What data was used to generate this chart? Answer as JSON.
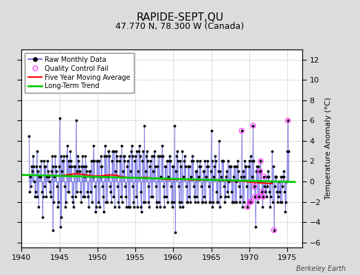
{
  "title": "RAPIDE-SEPT,QU",
  "subtitle": "47.770 N, 78.300 W (Canada)",
  "ylabel": "Temperature Anomaly (°C)",
  "watermark": "Berkeley Earth",
  "xlim": [
    1940,
    1977
  ],
  "ylim": [
    -6.5,
    13
  ],
  "yticks": [
    -6,
    -4,
    -2,
    0,
    2,
    4,
    6,
    8,
    10,
    12
  ],
  "xticks": [
    1940,
    1945,
    1950,
    1955,
    1960,
    1965,
    1970,
    1975
  ],
  "bg_color": "#dcdcdc",
  "plot_bg_color": "#ffffff",
  "raw_line_color": "#5555dd",
  "raw_dot_color": "#000000",
  "ma_color": "#ff0000",
  "trend_color": "#00cc00",
  "qc_color": "#ff44ff",
  "raw_data": [
    [
      1941.0,
      4.5
    ],
    [
      1941.083,
      -1.0
    ],
    [
      1941.167,
      0.5
    ],
    [
      1941.25,
      -0.5
    ],
    [
      1941.333,
      1.5
    ],
    [
      1941.417,
      1.0
    ],
    [
      1941.5,
      2.5
    ],
    [
      1941.583,
      1.5
    ],
    [
      1941.667,
      0.0
    ],
    [
      1941.75,
      -1.5
    ],
    [
      1941.833,
      -1.0
    ],
    [
      1941.917,
      1.5
    ],
    [
      1942.0,
      3.0
    ],
    [
      1942.083,
      -1.5
    ],
    [
      1942.167,
      1.0
    ],
    [
      1942.25,
      -2.5
    ],
    [
      1942.333,
      0.5
    ],
    [
      1942.417,
      1.5
    ],
    [
      1942.5,
      0.5
    ],
    [
      1942.583,
      2.0
    ],
    [
      1942.667,
      -1.0
    ],
    [
      1942.75,
      -3.5
    ],
    [
      1942.833,
      -1.5
    ],
    [
      1942.917,
      2.0
    ],
    [
      1943.0,
      1.5
    ],
    [
      1943.083,
      -0.5
    ],
    [
      1943.167,
      1.5
    ],
    [
      1943.25,
      -1.5
    ],
    [
      1943.333,
      0.5
    ],
    [
      1943.417,
      2.0
    ],
    [
      1943.5,
      1.0
    ],
    [
      1943.583,
      0.5
    ],
    [
      1943.667,
      0.0
    ],
    [
      1943.75,
      -1.0
    ],
    [
      1943.833,
      -1.5
    ],
    [
      1943.917,
      1.0
    ],
    [
      1944.0,
      2.5
    ],
    [
      1944.083,
      -4.8
    ],
    [
      1944.167,
      1.5
    ],
    [
      1944.25,
      -2.0
    ],
    [
      1944.333,
      0.5
    ],
    [
      1944.417,
      2.5
    ],
    [
      1944.5,
      1.5
    ],
    [
      1944.583,
      1.0
    ],
    [
      1944.667,
      -0.5
    ],
    [
      1944.75,
      -2.5
    ],
    [
      1944.833,
      -2.0
    ],
    [
      1944.917,
      1.5
    ],
    [
      1945.0,
      6.2
    ],
    [
      1945.083,
      -4.5
    ],
    [
      1945.167,
      2.5
    ],
    [
      1945.25,
      -3.5
    ],
    [
      1945.333,
      1.0
    ],
    [
      1945.417,
      2.0
    ],
    [
      1945.5,
      2.0
    ],
    [
      1945.583,
      2.5
    ],
    [
      1945.667,
      -0.5
    ],
    [
      1945.75,
      -2.5
    ],
    [
      1945.833,
      -2.0
    ],
    [
      1945.917,
      2.5
    ],
    [
      1946.0,
      3.5
    ],
    [
      1946.083,
      -1.0
    ],
    [
      1946.167,
      2.0
    ],
    [
      1946.25,
      -1.0
    ],
    [
      1946.333,
      1.5
    ],
    [
      1946.417,
      3.0
    ],
    [
      1946.5,
      2.0
    ],
    [
      1946.583,
      1.5
    ],
    [
      1946.667,
      -1.5
    ],
    [
      1946.75,
      -2.0
    ],
    [
      1946.833,
      -2.5
    ],
    [
      1946.917,
      1.5
    ],
    [
      1947.0,
      1.5
    ],
    [
      1947.083,
      -1.5
    ],
    [
      1947.167,
      6.0
    ],
    [
      1947.25,
      -1.0
    ],
    [
      1947.333,
      1.0
    ],
    [
      1947.417,
      2.5
    ],
    [
      1947.5,
      2.0
    ],
    [
      1947.583,
      1.5
    ],
    [
      1947.667,
      1.0
    ],
    [
      1947.75,
      -1.0
    ],
    [
      1947.833,
      -2.0
    ],
    [
      1947.917,
      1.5
    ],
    [
      1948.0,
      2.5
    ],
    [
      1948.083,
      -1.5
    ],
    [
      1948.167,
      1.5
    ],
    [
      1948.25,
      -1.5
    ],
    [
      1948.333,
      0.5
    ],
    [
      1948.417,
      2.5
    ],
    [
      1948.5,
      1.5
    ],
    [
      1948.583,
      1.0
    ],
    [
      1948.667,
      -1.0
    ],
    [
      1948.75,
      -1.5
    ],
    [
      1948.833,
      -2.5
    ],
    [
      1948.917,
      1.0
    ],
    [
      1949.0,
      1.0
    ],
    [
      1949.083,
      -1.0
    ],
    [
      1949.167,
      2.0
    ],
    [
      1949.25,
      -2.0
    ],
    [
      1949.333,
      0.5
    ],
    [
      1949.417,
      2.0
    ],
    [
      1949.5,
      3.5
    ],
    [
      1949.583,
      2.0
    ],
    [
      1949.667,
      -0.5
    ],
    [
      1949.75,
      -3.0
    ],
    [
      1949.833,
      -2.5
    ],
    [
      1949.917,
      2.0
    ],
    [
      1950.0,
      2.0
    ],
    [
      1950.083,
      -2.0
    ],
    [
      1950.167,
      2.0
    ],
    [
      1950.25,
      -2.5
    ],
    [
      1950.333,
      0.5
    ],
    [
      1950.417,
      2.5
    ],
    [
      1950.5,
      1.5
    ],
    [
      1950.583,
      1.5
    ],
    [
      1950.667,
      -0.5
    ],
    [
      1950.75,
      -1.5
    ],
    [
      1950.833,
      -3.0
    ],
    [
      1950.917,
      2.5
    ],
    [
      1951.0,
      3.5
    ],
    [
      1951.083,
      -2.0
    ],
    [
      1951.167,
      2.5
    ],
    [
      1951.25,
      -2.0
    ],
    [
      1951.333,
      0.5
    ],
    [
      1951.417,
      3.0
    ],
    [
      1951.5,
      3.0
    ],
    [
      1951.583,
      2.5
    ],
    [
      1951.667,
      -0.5
    ],
    [
      1951.75,
      -1.0
    ],
    [
      1951.833,
      -2.0
    ],
    [
      1951.917,
      2.0
    ],
    [
      1952.0,
      3.0
    ],
    [
      1952.083,
      -1.5
    ],
    [
      1952.167,
      3.0
    ],
    [
      1952.25,
      -2.5
    ],
    [
      1952.333,
      1.0
    ],
    [
      1952.417,
      3.0
    ],
    [
      1952.5,
      2.0
    ],
    [
      1952.583,
      2.5
    ],
    [
      1952.667,
      -0.5
    ],
    [
      1952.75,
      -2.0
    ],
    [
      1952.833,
      -2.5
    ],
    [
      1952.917,
      2.0
    ],
    [
      1953.0,
      2.5
    ],
    [
      1953.083,
      -1.5
    ],
    [
      1953.167,
      3.5
    ],
    [
      1953.25,
      -2.0
    ],
    [
      1953.333,
      1.0
    ],
    [
      1953.417,
      2.5
    ],
    [
      1953.5,
      2.5
    ],
    [
      1953.583,
      2.0
    ],
    [
      1953.667,
      -0.5
    ],
    [
      1953.75,
      -1.5
    ],
    [
      1953.833,
      -2.5
    ],
    [
      1953.917,
      1.5
    ],
    [
      1954.0,
      2.0
    ],
    [
      1954.083,
      -2.5
    ],
    [
      1954.167,
      2.5
    ],
    [
      1954.25,
      -2.5
    ],
    [
      1954.333,
      1.0
    ],
    [
      1954.417,
      3.0
    ],
    [
      1954.5,
      3.5
    ],
    [
      1954.583,
      2.5
    ],
    [
      1954.667,
      -0.5
    ],
    [
      1954.75,
      -2.0
    ],
    [
      1954.833,
      -2.5
    ],
    [
      1954.917,
      2.0
    ],
    [
      1955.0,
      2.5
    ],
    [
      1955.083,
      -1.5
    ],
    [
      1955.167,
      3.0
    ],
    [
      1955.25,
      -2.5
    ],
    [
      1955.333,
      1.0
    ],
    [
      1955.417,
      3.0
    ],
    [
      1955.5,
      3.5
    ],
    [
      1955.583,
      2.5
    ],
    [
      1955.667,
      -1.0
    ],
    [
      1955.75,
      -2.5
    ],
    [
      1955.833,
      -3.0
    ],
    [
      1955.917,
      2.0
    ],
    [
      1956.0,
      3.0
    ],
    [
      1956.083,
      -2.0
    ],
    [
      1956.167,
      5.5
    ],
    [
      1956.25,
      -2.0
    ],
    [
      1956.333,
      1.0
    ],
    [
      1956.417,
      2.5
    ],
    [
      1956.5,
      3.0
    ],
    [
      1956.583,
      2.0
    ],
    [
      1956.667,
      -0.5
    ],
    [
      1956.75,
      -2.0
    ],
    [
      1956.833,
      -2.5
    ],
    [
      1956.917,
      1.5
    ],
    [
      1957.0,
      2.0
    ],
    [
      1957.083,
      -1.5
    ],
    [
      1957.167,
      2.5
    ],
    [
      1957.25,
      -1.5
    ],
    [
      1957.333,
      1.0
    ],
    [
      1957.417,
      2.5
    ],
    [
      1957.5,
      3.0
    ],
    [
      1957.583,
      1.5
    ],
    [
      1957.667,
      -0.5
    ],
    [
      1957.75,
      -2.0
    ],
    [
      1957.833,
      -2.5
    ],
    [
      1957.917,
      1.5
    ],
    [
      1958.0,
      2.5
    ],
    [
      1958.083,
      -2.0
    ],
    [
      1958.167,
      2.5
    ],
    [
      1958.25,
      -2.5
    ],
    [
      1958.333,
      0.5
    ],
    [
      1958.417,
      2.5
    ],
    [
      1958.5,
      3.5
    ],
    [
      1958.583,
      2.5
    ],
    [
      1958.667,
      -0.5
    ],
    [
      1958.75,
      -1.5
    ],
    [
      1958.833,
      -2.5
    ],
    [
      1958.917,
      1.5
    ],
    [
      1959.0,
      1.5
    ],
    [
      1959.083,
      -1.5
    ],
    [
      1959.167,
      2.0
    ],
    [
      1959.25,
      -2.0
    ],
    [
      1959.333,
      0.5
    ],
    [
      1959.417,
      2.0
    ],
    [
      1959.5,
      2.5
    ],
    [
      1959.583,
      2.0
    ],
    [
      1959.667,
      -0.5
    ],
    [
      1959.75,
      -2.0
    ],
    [
      1959.833,
      -2.5
    ],
    [
      1959.917,
      1.5
    ],
    [
      1960.0,
      1.5
    ],
    [
      1960.083,
      -2.0
    ],
    [
      1960.167,
      5.5
    ],
    [
      1960.25,
      -5.0
    ],
    [
      1960.333,
      1.0
    ],
    [
      1960.417,
      2.5
    ],
    [
      1960.5,
      3.0
    ],
    [
      1960.583,
      2.0
    ],
    [
      1960.667,
      -0.5
    ],
    [
      1960.75,
      -2.0
    ],
    [
      1960.833,
      -2.5
    ],
    [
      1960.917,
      2.0
    ],
    [
      1961.0,
      1.5
    ],
    [
      1961.083,
      -2.0
    ],
    [
      1961.167,
      3.0
    ],
    [
      1961.25,
      -2.5
    ],
    [
      1961.333,
      0.5
    ],
    [
      1961.417,
      2.0
    ],
    [
      1961.5,
      2.5
    ],
    [
      1961.583,
      1.5
    ],
    [
      1961.667,
      -0.5
    ],
    [
      1961.75,
      -2.0
    ],
    [
      1961.833,
      -2.0
    ],
    [
      1961.917,
      1.5
    ],
    [
      1962.0,
      1.5
    ],
    [
      1962.083,
      -1.5
    ],
    [
      1962.167,
      1.5
    ],
    [
      1962.25,
      -2.0
    ],
    [
      1962.333,
      0.5
    ],
    [
      1962.417,
      2.0
    ],
    [
      1962.5,
      2.5
    ],
    [
      1962.583,
      2.0
    ],
    [
      1962.667,
      -0.5
    ],
    [
      1962.75,
      -1.5
    ],
    [
      1962.833,
      -2.0
    ],
    [
      1962.917,
      1.0
    ],
    [
      1963.0,
      1.0
    ],
    [
      1963.083,
      -1.5
    ],
    [
      1963.167,
      2.0
    ],
    [
      1963.25,
      -2.0
    ],
    [
      1963.333,
      0.5
    ],
    [
      1963.417,
      1.5
    ],
    [
      1963.5,
      2.0
    ],
    [
      1963.583,
      1.5
    ],
    [
      1963.667,
      -0.5
    ],
    [
      1963.75,
      -2.0
    ],
    [
      1963.833,
      -2.0
    ],
    [
      1963.917,
      1.0
    ],
    [
      1964.0,
      1.0
    ],
    [
      1964.083,
      -1.5
    ],
    [
      1964.167,
      2.0
    ],
    [
      1964.25,
      -2.0
    ],
    [
      1964.333,
      0.5
    ],
    [
      1964.417,
      1.5
    ],
    [
      1964.5,
      2.0
    ],
    [
      1964.583,
      1.5
    ],
    [
      1964.667,
      -0.5
    ],
    [
      1964.75,
      -2.0
    ],
    [
      1964.833,
      -2.0
    ],
    [
      1964.917,
      1.0
    ],
    [
      1965.0,
      5.0
    ],
    [
      1965.083,
      -2.5
    ],
    [
      1965.167,
      2.0
    ],
    [
      1965.25,
      -2.0
    ],
    [
      1965.333,
      0.5
    ],
    [
      1965.417,
      1.5
    ],
    [
      1965.5,
      2.5
    ],
    [
      1965.583,
      2.0
    ],
    [
      1965.667,
      -1.0
    ],
    [
      1965.75,
      -2.0
    ],
    [
      1965.833,
      -2.0
    ],
    [
      1965.917,
      1.0
    ],
    [
      1966.0,
      4.0
    ],
    [
      1966.083,
      -2.5
    ],
    [
      1966.167,
      1.0
    ],
    [
      1966.25,
      -1.5
    ],
    [
      1966.333,
      0.5
    ],
    [
      1966.417,
      2.0
    ],
    [
      1966.5,
      2.0
    ],
    [
      1966.583,
      2.0
    ],
    [
      1966.667,
      -0.5
    ],
    [
      1966.75,
      -2.0
    ],
    [
      1966.833,
      -1.5
    ],
    [
      1966.917,
      0.5
    ],
    [
      1967.0,
      1.0
    ],
    [
      1967.083,
      -1.0
    ],
    [
      1967.167,
      2.0
    ],
    [
      1967.25,
      -1.5
    ],
    [
      1967.333,
      0.0
    ],
    [
      1967.417,
      1.5
    ],
    [
      1967.5,
      1.5
    ],
    [
      1967.583,
      1.5
    ],
    [
      1967.667,
      -1.0
    ],
    [
      1967.75,
      -2.0
    ],
    [
      1967.833,
      -2.0
    ],
    [
      1967.917,
      0.5
    ],
    [
      1968.0,
      1.5
    ],
    [
      1968.083,
      -2.0
    ],
    [
      1968.167,
      1.5
    ],
    [
      1968.25,
      -2.0
    ],
    [
      1968.333,
      0.0
    ],
    [
      1968.417,
      1.5
    ],
    [
      1968.5,
      2.0
    ],
    [
      1968.583,
      1.0
    ],
    [
      1968.667,
      -0.5
    ],
    [
      1968.75,
      -2.0
    ],
    [
      1968.833,
      -1.5
    ],
    [
      1968.917,
      0.5
    ],
    [
      1969.0,
      5.0
    ],
    [
      1969.083,
      -2.5
    ],
    [
      1969.167,
      1.0
    ],
    [
      1969.25,
      -2.0
    ],
    [
      1969.333,
      0.5
    ],
    [
      1969.417,
      2.0
    ],
    [
      1969.5,
      1.5
    ],
    [
      1969.583,
      1.5
    ],
    [
      1969.667,
      -0.5
    ],
    [
      1969.75,
      -2.5
    ],
    [
      1969.833,
      -2.0
    ],
    [
      1969.917,
      1.5
    ],
    [
      1970.0,
      2.0
    ],
    [
      1970.083,
      -2.0
    ],
    [
      1970.167,
      2.5
    ],
    [
      1970.25,
      -2.0
    ],
    [
      1970.333,
      0.5
    ],
    [
      1970.417,
      2.0
    ],
    [
      1970.5,
      5.5
    ],
    [
      1970.583,
      2.0
    ],
    [
      1970.667,
      -0.5
    ],
    [
      1970.75,
      -1.5
    ],
    [
      1970.833,
      -4.5
    ],
    [
      1970.917,
      1.0
    ],
    [
      1971.0,
      1.5
    ],
    [
      1971.083,
      -2.0
    ],
    [
      1971.167,
      1.5
    ],
    [
      1971.25,
      -1.5
    ],
    [
      1971.333,
      0.0
    ],
    [
      1971.417,
      1.0
    ],
    [
      1971.5,
      2.0
    ],
    [
      1971.583,
      1.0
    ],
    [
      1971.667,
      -1.0
    ],
    [
      1971.75,
      -2.5
    ],
    [
      1971.833,
      -1.5
    ],
    [
      1971.917,
      0.5
    ],
    [
      1972.0,
      -0.5
    ],
    [
      1972.083,
      -1.0
    ],
    [
      1972.167,
      0.5
    ],
    [
      1972.25,
      -1.5
    ],
    [
      1972.333,
      -0.5
    ],
    [
      1972.417,
      0.5
    ],
    [
      1972.5,
      1.0
    ],
    [
      1972.583,
      0.5
    ],
    [
      1972.667,
      -1.0
    ],
    [
      1972.75,
      -2.5
    ],
    [
      1972.833,
      -1.5
    ],
    [
      1972.917,
      0.0
    ],
    [
      1973.0,
      3.0
    ],
    [
      1973.083,
      -2.0
    ],
    [
      1973.167,
      1.5
    ],
    [
      1973.25,
      -4.8
    ],
    [
      1973.333,
      -0.5
    ],
    [
      1973.417,
      0.5
    ],
    [
      1973.5,
      0.5
    ],
    [
      1973.583,
      0.5
    ],
    [
      1973.667,
      -1.0
    ],
    [
      1973.75,
      -2.0
    ],
    [
      1973.833,
      -1.5
    ],
    [
      1973.917,
      0.0
    ],
    [
      1974.0,
      -1.0
    ],
    [
      1974.083,
      -2.0
    ],
    [
      1974.167,
      0.5
    ],
    [
      1974.25,
      -2.0
    ],
    [
      1974.333,
      -0.5
    ],
    [
      1974.417,
      0.5
    ],
    [
      1974.5,
      1.0
    ],
    [
      1974.583,
      0.5
    ],
    [
      1974.667,
      -1.0
    ],
    [
      1974.75,
      -3.0
    ],
    [
      1974.833,
      -2.0
    ],
    [
      1974.917,
      0.0
    ],
    [
      1975.0,
      3.0
    ],
    [
      1975.083,
      6.0
    ],
    [
      1975.167,
      3.0
    ]
  ],
  "qc_fail_points": [
    [
      1973.25,
      -4.8
    ],
    [
      1970.5,
      5.5
    ],
    [
      1975.083,
      6.0
    ],
    [
      1969.75,
      -2.5
    ],
    [
      1970.083,
      -2.0
    ],
    [
      1970.25,
      -2.0
    ],
    [
      1970.667,
      -0.5
    ],
    [
      1970.75,
      -1.5
    ],
    [
      1971.25,
      -1.5
    ],
    [
      1971.417,
      1.0
    ],
    [
      1971.5,
      2.0
    ],
    [
      1971.667,
      -1.0
    ],
    [
      1971.833,
      -1.5
    ],
    [
      1971.917,
      0.5
    ],
    [
      1969.0,
      5.0
    ]
  ],
  "moving_avg": [
    [
      1943.5,
      0.65
    ],
    [
      1944.0,
      0.6
    ],
    [
      1944.5,
      0.55
    ],
    [
      1945.0,
      0.55
    ],
    [
      1945.5,
      0.6
    ],
    [
      1946.0,
      0.65
    ],
    [
      1946.5,
      0.7
    ],
    [
      1947.0,
      0.75
    ],
    [
      1947.5,
      0.75
    ],
    [
      1948.0,
      0.7
    ],
    [
      1948.5,
      0.65
    ],
    [
      1949.0,
      0.6
    ],
    [
      1949.5,
      0.55
    ],
    [
      1950.0,
      0.55
    ],
    [
      1950.5,
      0.55
    ],
    [
      1951.0,
      0.6
    ],
    [
      1951.5,
      0.65
    ],
    [
      1952.0,
      0.65
    ],
    [
      1952.5,
      0.6
    ],
    [
      1953.0,
      0.5
    ],
    [
      1953.5,
      0.45
    ],
    [
      1954.0,
      0.4
    ],
    [
      1954.5,
      0.4
    ],
    [
      1955.0,
      0.35
    ],
    [
      1955.5,
      0.35
    ],
    [
      1956.0,
      0.4
    ],
    [
      1956.5,
      0.4
    ],
    [
      1957.0,
      0.35
    ],
    [
      1957.5,
      0.3
    ],
    [
      1958.0,
      0.3
    ],
    [
      1958.5,
      0.25
    ],
    [
      1959.0,
      0.2
    ],
    [
      1959.5,
      0.2
    ],
    [
      1960.0,
      0.2
    ],
    [
      1960.5,
      0.2
    ],
    [
      1961.0,
      0.2
    ],
    [
      1961.5,
      0.2
    ],
    [
      1962.0,
      0.15
    ],
    [
      1962.5,
      0.15
    ],
    [
      1963.0,
      0.15
    ],
    [
      1963.5,
      0.15
    ],
    [
      1964.0,
      0.15
    ],
    [
      1964.5,
      0.15
    ],
    [
      1965.0,
      0.15
    ],
    [
      1965.5,
      0.15
    ],
    [
      1966.0,
      0.1
    ],
    [
      1966.5,
      0.1
    ],
    [
      1967.0,
      0.1
    ],
    [
      1967.5,
      0.05
    ],
    [
      1968.0,
      0.05
    ],
    [
      1968.5,
      0.05
    ],
    [
      1969.0,
      0.05
    ],
    [
      1969.5,
      0.0
    ],
    [
      1970.0,
      -0.05
    ],
    [
      1970.5,
      -0.1
    ],
    [
      1971.0,
      -0.1
    ],
    [
      1971.5,
      -0.15
    ],
    [
      1972.0,
      -0.15
    ],
    [
      1972.5,
      -0.2
    ],
    [
      1973.0,
      -0.2
    ]
  ],
  "trend_line": [
    [
      1940,
      0.65
    ],
    [
      1976,
      -0.05
    ]
  ],
  "legend_entries": [
    {
      "label": "Raw Monthly Data"
    },
    {
      "label": "Quality Control Fail"
    },
    {
      "label": "Five Year Moving Average"
    },
    {
      "label": "Long-Term Trend"
    }
  ]
}
